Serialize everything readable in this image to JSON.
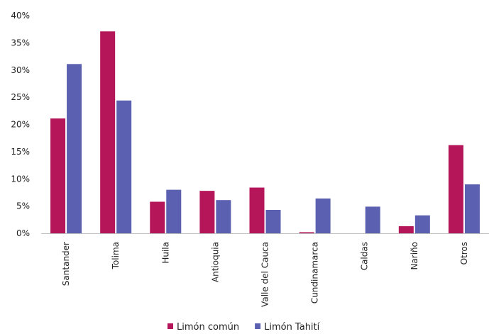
{
  "chart_data": {
    "type": "bar",
    "title": "",
    "xlabel": "",
    "ylabel": "",
    "ylim": [
      0,
      40
    ],
    "y_ticks": [
      "0%",
      "5%",
      "10%",
      "15%",
      "20%",
      "25%",
      "30%",
      "35%",
      "40%"
    ],
    "grid": false,
    "legend_position": "bottom",
    "categories": [
      "Santander",
      "Tolima",
      "Huila",
      "Antioquia",
      "Valle del Cauca",
      "Cundinamarca",
      "Caldas",
      "Nariño",
      "Otros"
    ],
    "series": [
      {
        "name": "Limón común",
        "color": "#b5165a",
        "values": [
          21.1,
          37.1,
          5.8,
          7.8,
          8.4,
          0.2,
          0.0,
          1.3,
          16.2
        ]
      },
      {
        "name": "Limón Tahití",
        "color": "#5b60b0",
        "values": [
          31.1,
          24.4,
          8.0,
          6.1,
          4.3,
          6.4,
          4.9,
          3.3,
          9.0
        ]
      }
    ]
  }
}
